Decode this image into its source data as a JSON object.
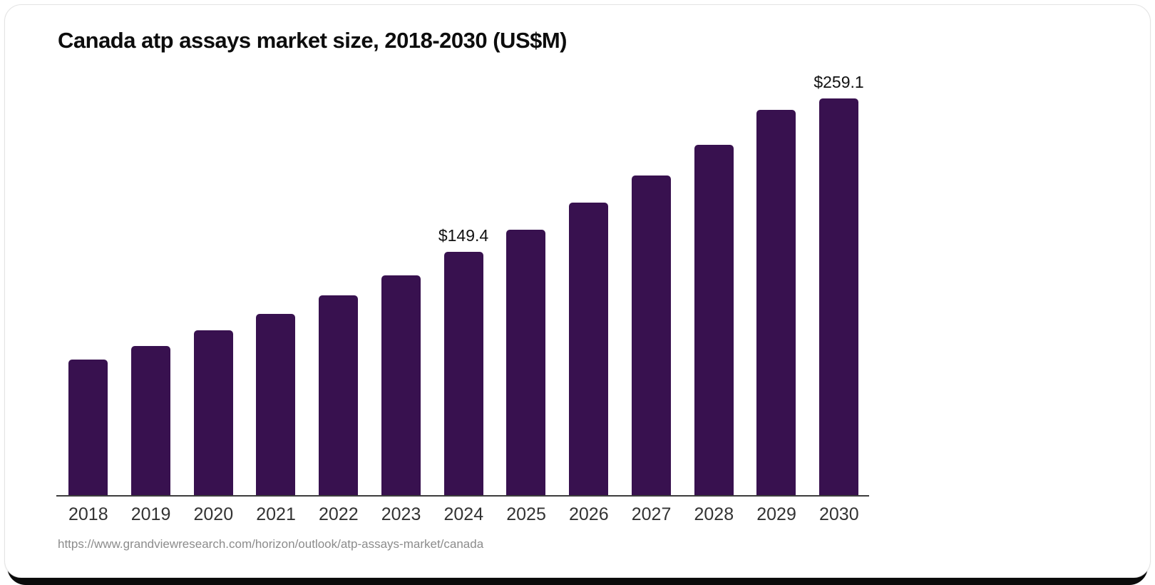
{
  "chart_data": {
    "type": "bar",
    "title": "Canada atp assays market size, 2018-2030 (US$M)",
    "unit": "US$M",
    "categories": [
      "2018",
      "2019",
      "2020",
      "2021",
      "2022",
      "2023",
      "2024",
      "2025",
      "2026",
      "2027",
      "2028",
      "2029",
      "2030"
    ],
    "values": [
      83.2,
      91.6,
      101.2,
      111.3,
      122.6,
      134.9,
      149.4,
      163.0,
      179.6,
      196.2,
      215.1,
      236.5,
      259.1
    ],
    "data_labels": [
      {
        "category": "2024",
        "text": "$149.4"
      },
      {
        "category": "2030",
        "text": "$259.1"
      }
    ],
    "ylim": [
      0,
      259.1
    ],
    "grid": "off",
    "legend": "none",
    "bar_color": "#38114F",
    "axis_color": "#3d3d3d",
    "source_url": "https://www.grandviewresearch.com/horizon/outlook/atp-assays-market/canada"
  }
}
